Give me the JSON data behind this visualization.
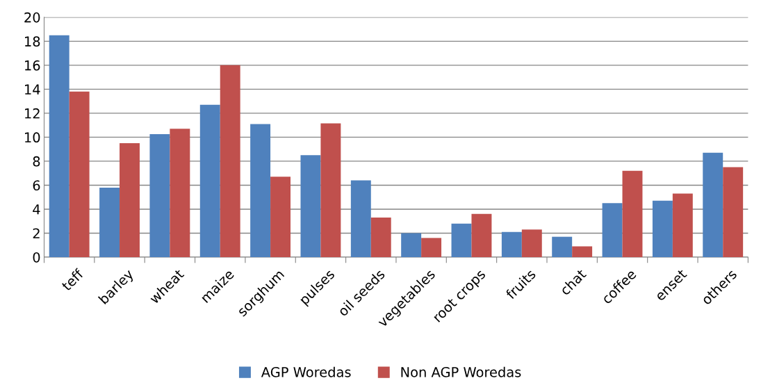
{
  "chart_data": {
    "type": "bar",
    "categories": [
      "teff",
      "barley",
      "wheat",
      "maize",
      "sorghum",
      "pulses",
      "oil seeds",
      "vegetables",
      "root crops",
      "fruits",
      "chat",
      "coffee",
      "enset",
      "others"
    ],
    "series": [
      {
        "name": "AGP Woredas",
        "color": "#4f81bd",
        "values": [
          18.5,
          5.8,
          10.25,
          12.7,
          11.1,
          8.5,
          6.4,
          2.0,
          2.8,
          2.1,
          1.7,
          4.5,
          4.7,
          8.7
        ]
      },
      {
        "name": "Non AGP Woredas",
        "color": "#c0504d",
        "values": [
          13.8,
          9.5,
          10.7,
          16.0,
          6.7,
          11.15,
          3.3,
          1.6,
          3.6,
          2.3,
          0.9,
          7.2,
          5.3,
          7.5
        ]
      }
    ],
    "ylim": [
      0,
      20
    ],
    "yticks": [
      0,
      2,
      4,
      6,
      8,
      10,
      12,
      14,
      16,
      18,
      20
    ],
    "grid": "y",
    "legend": "bottom"
  }
}
